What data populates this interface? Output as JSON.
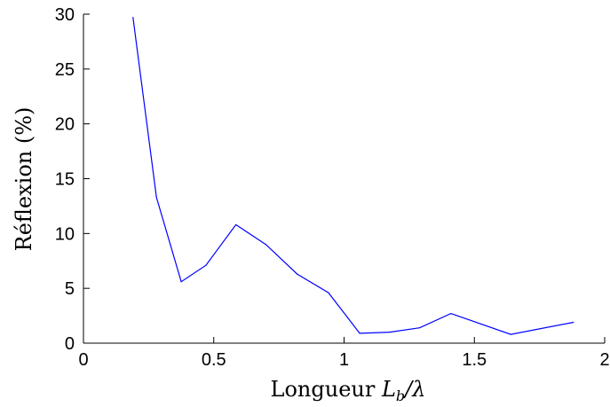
{
  "chart_data": {
    "type": "line",
    "title": "",
    "xlabel_text": "Longueur",
    "xlabel_symbol": "L",
    "xlabel_subscript": "b",
    "xlabel_suffix": "/λ",
    "ylabel": "Réflexion (%)",
    "xlim": [
      0,
      2
    ],
    "ylim": [
      0,
      30
    ],
    "xticks": [
      0,
      0.5,
      1,
      1.5,
      2
    ],
    "xtick_labels": [
      "0",
      "0.5",
      "1",
      "1.5",
      "2"
    ],
    "yticks": [
      0,
      5,
      10,
      15,
      20,
      25,
      30
    ],
    "ytick_labels": [
      "0",
      "5",
      "10",
      "15",
      "20",
      "25",
      "30"
    ],
    "grid": false,
    "series": [
      {
        "color": "#0000ff",
        "x": [
          0.19,
          0.28,
          0.375,
          0.47,
          0.585,
          0.7,
          0.82,
          0.94,
          1.06,
          1.175,
          1.29,
          1.41,
          1.64,
          1.88
        ],
        "y": [
          29.7,
          13.3,
          5.6,
          7.1,
          10.8,
          9.0,
          6.3,
          4.6,
          0.9,
          1.0,
          1.4,
          2.7,
          0.8,
          1.9
        ]
      }
    ]
  }
}
